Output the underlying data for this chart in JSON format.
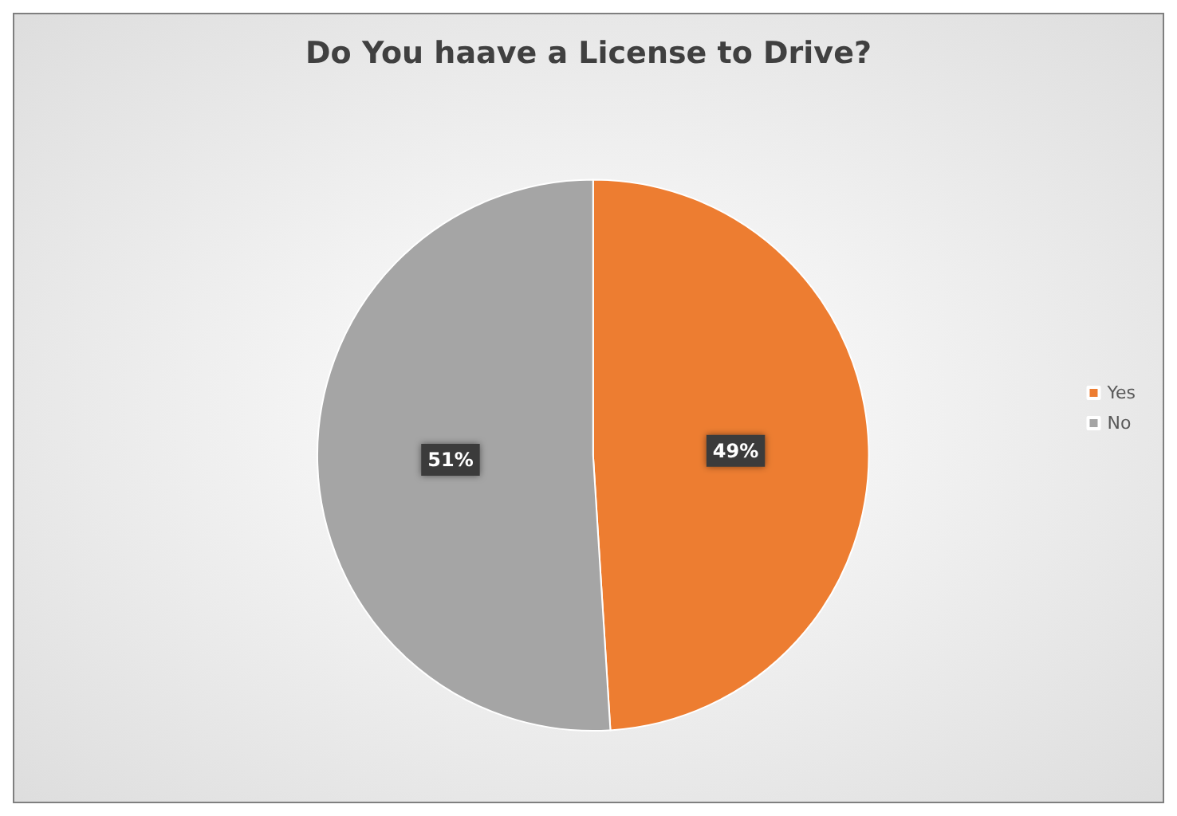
{
  "chart_data": {
    "type": "pie",
    "title": "Do You haave a License to Drive?",
    "categories": [
      "Yes",
      "No"
    ],
    "values": [
      49,
      51
    ],
    "colors": [
      "#ed7d31",
      "#a5a5a5"
    ],
    "value_labels": [
      "49%",
      "51%"
    ],
    "legend": "right"
  }
}
